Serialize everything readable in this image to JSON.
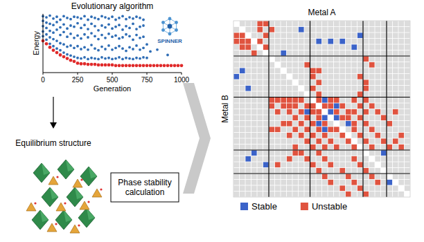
{
  "chart_data": [
    {
      "type": "scatter",
      "title": "Evolutionary algorithm",
      "x_label": "Generation",
      "y_label": "Energy",
      "xlim": [
        0,
        1000
      ],
      "xticks": [
        0,
        250,
        500,
        750,
        1000
      ],
      "ylim": [
        0,
        10
      ],
      "tick_labels": "x",
      "series": [
        {
          "color": "#2f6db5",
          "marker": "circle",
          "x": [
            0,
            0,
            0,
            0,
            0,
            25,
            25,
            25,
            25,
            25,
            50,
            50,
            50,
            50,
            50,
            75,
            75,
            75,
            75,
            75,
            100,
            100,
            100,
            100,
            100,
            125,
            125,
            125,
            125,
            125,
            150,
            150,
            150,
            150,
            150,
            175,
            175,
            175,
            175,
            175,
            200,
            200,
            200,
            200,
            200,
            225,
            225,
            225,
            225,
            225,
            250,
            250,
            250,
            250,
            250,
            275,
            275,
            275,
            275,
            275,
            300,
            300,
            300,
            300,
            300,
            325,
            325,
            325,
            325,
            325,
            350,
            350,
            350,
            350,
            350,
            375,
            375,
            375,
            375,
            375,
            400,
            400,
            400,
            400,
            400,
            425,
            425,
            425,
            425,
            425,
            450,
            450,
            450,
            450,
            450,
            475,
            475,
            475,
            475,
            475,
            500,
            500,
            500,
            500,
            500,
            525,
            525,
            525,
            525,
            525,
            550,
            550,
            550,
            550,
            550,
            575,
            575,
            575,
            575,
            575,
            600,
            600,
            600,
            600,
            600,
            625,
            625,
            625,
            625,
            625,
            650,
            650,
            650,
            650,
            650,
            675,
            675,
            675,
            675,
            675,
            700,
            700,
            700,
            700,
            700,
            725,
            725,
            725,
            725,
            725,
            750,
            750,
            775,
            825,
            900
          ],
          "values": [
            9.6,
            8.8,
            7.9,
            7.0,
            6.2,
            9.4,
            8.5,
            7.6,
            6.5,
            5.6,
            9.7,
            8.3,
            7.1,
            6.0,
            4.9,
            9.2,
            8.1,
            6.8,
            5.7,
            4.5,
            9.5,
            8.6,
            7.3,
            5.4,
            4.1,
            9.0,
            7.7,
            6.4,
            5.0,
            3.8,
            9.6,
            8.2,
            6.9,
            4.8,
            3.4,
            9.3,
            7.5,
            6.1,
            4.4,
            3.1,
            9.1,
            8.0,
            6.6,
            4.6,
            2.9,
            9.5,
            7.8,
            5.9,
            4.2,
            2.7,
            9.4,
            8.4,
            6.3,
            4.5,
            2.5,
            9.2,
            7.6,
            5.8,
            4.0,
            2.4,
            9.6,
            8.1,
            6.5,
            4.3,
            2.6,
            9.0,
            7.4,
            6.0,
            3.9,
            2.3,
            9.5,
            8.3,
            6.7,
            4.7,
            2.5,
            9.3,
            7.9,
            6.2,
            4.1,
            2.4,
            9.1,
            7.2,
            5.7,
            3.8,
            2.3,
            9.6,
            8.0,
            6.4,
            4.4,
            2.6,
            9.4,
            7.7,
            5.9,
            4.0,
            2.4,
            9.2,
            8.2,
            6.6,
            4.6,
            2.5,
            9.5,
            7.5,
            6.1,
            3.9,
            2.3,
            9.0,
            7.8,
            6.3,
            4.2,
            2.4,
            9.3,
            8.1,
            5.8,
            4.5,
            2.6,
            9.6,
            7.3,
            6.0,
            4.1,
            2.3,
            9.1,
            7.9,
            6.5,
            3.7,
            2.5,
            9.4,
            7.6,
            6.2,
            4.3,
            2.4,
            9.2,
            8.3,
            5.6,
            4.0,
            2.3,
            9.5,
            7.4,
            6.4,
            4.6,
            2.5,
            9.3,
            7.8,
            5.9,
            3.9,
            2.4,
            9.0,
            8.0,
            6.1,
            4.2,
            2.6,
            4.8,
            2.5,
            3.6,
            3.9,
            3.0
          ]
        },
        {
          "color": "#e02a2a",
          "marker": "circle",
          "x": [
            0,
            25,
            50,
            75,
            100,
            125,
            150,
            175,
            200,
            225,
            250,
            275,
            300,
            325,
            350,
            375,
            400,
            425,
            450,
            475,
            500,
            525,
            550,
            575,
            600,
            625,
            650,
            675,
            700,
            725,
            750,
            775,
            800,
            825,
            850,
            875,
            900,
            925,
            950,
            975,
            1000
          ],
          "values": [
            5.4,
            4.9,
            4.3,
            3.8,
            3.4,
            3.0,
            2.7,
            2.4,
            2.1,
            1.9,
            1.6,
            1.5,
            1.5,
            1.4,
            1.4,
            1.4,
            1.3,
            1.3,
            1.3,
            1.3,
            1.3,
            1.2,
            1.2,
            1.2,
            1.2,
            1.2,
            1.2,
            1.2,
            1.2,
            1.2,
            1.2,
            1.2,
            1.2,
            1.2,
            1.2,
            1.2,
            1.2,
            1.2,
            1.2,
            1.2,
            1.2
          ]
        }
      ]
    },
    {
      "type": "heatmap",
      "x_label": "Metal A",
      "y_label": "Metal B",
      "rows": 30,
      "columns": 30,
      "group_boundaries": [
        6,
        13,
        22,
        26
      ],
      "legend": "bottom",
      "series": [
        {
          "name": "Stable",
          "color": "#3b63c9"
        },
        {
          "name": "Unstable",
          "color": "#e0533f"
        }
      ],
      "stable": [
        [
          1,
          11
        ],
        [
          3,
          14
        ],
        [
          3,
          18
        ],
        [
          4,
          20
        ],
        [
          2,
          21
        ],
        [
          3,
          16
        ],
        [
          5,
          8
        ],
        [
          8,
          1
        ],
        [
          9,
          0
        ],
        [
          11,
          2
        ],
        [
          13,
          15
        ],
        [
          14,
          17
        ],
        [
          15,
          16
        ],
        [
          16,
          15
        ],
        [
          17,
          14
        ],
        [
          16,
          17
        ],
        [
          18,
          15
        ],
        [
          15,
          12
        ],
        [
          17,
          19
        ],
        [
          22,
          3
        ],
        [
          23,
          2
        ],
        [
          24,
          5
        ],
        [
          22,
          25
        ],
        [
          27,
          26
        ]
      ],
      "unstable": [
        [
          0,
          4
        ],
        [
          0,
          5
        ],
        [
          1,
          4
        ],
        [
          1,
          6
        ],
        [
          2,
          0
        ],
        [
          2,
          1
        ],
        [
          2,
          5
        ],
        [
          3,
          0
        ],
        [
          3,
          1
        ],
        [
          3,
          2
        ],
        [
          3,
          4
        ],
        [
          4,
          1
        ],
        [
          4,
          2
        ],
        [
          4,
          5
        ],
        [
          5,
          3
        ],
        [
          7,
          12
        ],
        [
          8,
          13
        ],
        [
          8,
          14
        ],
        [
          9,
          13
        ],
        [
          10,
          14
        ],
        [
          11,
          13
        ],
        [
          12,
          14
        ],
        [
          9,
          21
        ],
        [
          10,
          22
        ],
        [
          11,
          22
        ],
        [
          12,
          21
        ],
        [
          6,
          22
        ],
        [
          7,
          23
        ],
        [
          13,
          6
        ],
        [
          13,
          7
        ],
        [
          13,
          8
        ],
        [
          13,
          9
        ],
        [
          13,
          10
        ],
        [
          13,
          11
        ],
        [
          13,
          14
        ],
        [
          13,
          16
        ],
        [
          13,
          17
        ],
        [
          13,
          20
        ],
        [
          13,
          22
        ],
        [
          14,
          6
        ],
        [
          14,
          8
        ],
        [
          14,
          9
        ],
        [
          14,
          10
        ],
        [
          14,
          12
        ],
        [
          14,
          13
        ],
        [
          14,
          15
        ],
        [
          14,
          16
        ],
        [
          14,
          18
        ],
        [
          14,
          21
        ],
        [
          14,
          23
        ],
        [
          15,
          7
        ],
        [
          15,
          9
        ],
        [
          15,
          11
        ],
        [
          15,
          13
        ],
        [
          15,
          14
        ],
        [
          15,
          17
        ],
        [
          15,
          19
        ],
        [
          15,
          20
        ],
        [
          15,
          22
        ],
        [
          15,
          24
        ],
        [
          15,
          27
        ],
        [
          16,
          10
        ],
        [
          16,
          12
        ],
        [
          16,
          14
        ],
        [
          16,
          18
        ],
        [
          16,
          19
        ],
        [
          16,
          21
        ],
        [
          16,
          25
        ],
        [
          17,
          8
        ],
        [
          17,
          9
        ],
        [
          17,
          11
        ],
        [
          17,
          13
        ],
        [
          17,
          15
        ],
        [
          17,
          20
        ],
        [
          17,
          22
        ],
        [
          17,
          26
        ],
        [
          18,
          6
        ],
        [
          18,
          7
        ],
        [
          18,
          10
        ],
        [
          18,
          12
        ],
        [
          18,
          14
        ],
        [
          18,
          16
        ],
        [
          18,
          17
        ],
        [
          18,
          20
        ],
        [
          18,
          23
        ],
        [
          19,
          9
        ],
        [
          19,
          11
        ],
        [
          19,
          13
        ],
        [
          19,
          15
        ],
        [
          19,
          18
        ],
        [
          19,
          21
        ],
        [
          19,
          24
        ],
        [
          19,
          28
        ],
        [
          20,
          12
        ],
        [
          20,
          14
        ],
        [
          20,
          16
        ],
        [
          20,
          19
        ],
        [
          20,
          22
        ],
        [
          20,
          25
        ],
        [
          20,
          27
        ],
        [
          21,
          10
        ],
        [
          21,
          13
        ],
        [
          21,
          15
        ],
        [
          21,
          17
        ],
        [
          21,
          20
        ],
        [
          21,
          23
        ],
        [
          21,
          26
        ],
        [
          21,
          28
        ],
        [
          22,
          10
        ],
        [
          22,
          11
        ],
        [
          22,
          14
        ],
        [
          23,
          9
        ],
        [
          23,
          12
        ],
        [
          23,
          15
        ],
        [
          24,
          7
        ],
        [
          24,
          13
        ],
        [
          24,
          16
        ],
        [
          25,
          14
        ],
        [
          25,
          18
        ],
        [
          26,
          15
        ],
        [
          26,
          19
        ],
        [
          27,
          16
        ],
        [
          27,
          20
        ],
        [
          28,
          18
        ],
        [
          28,
          21
        ],
        [
          29,
          19
        ],
        [
          29,
          22
        ],
        [
          23,
          20
        ],
        [
          24,
          21
        ],
        [
          25,
          22
        ],
        [
          26,
          23
        ],
        [
          27,
          24
        ]
      ]
    }
  ],
  "diagram": {
    "logo": "SPINNER",
    "structure_label": "Equilibrium structure",
    "step_label": "Phase stability calculation"
  }
}
